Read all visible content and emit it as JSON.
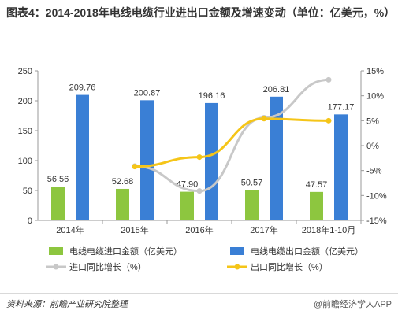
{
  "title": "图表4：2014-2018年电线电缆行业进出口金额及增速变动（单位：亿美元，%）",
  "source": "资料来源：前瞻产业研究院整理",
  "watermark": "@前瞻经济学人APP",
  "chart_data": {
    "type": "bar",
    "categories": [
      "2014年",
      "2015年",
      "2016年",
      "2017年",
      "2018年1-10月"
    ],
    "series": [
      {
        "name": "电线电缆进口金额（亿美元）",
        "type": "bar",
        "axis": "left",
        "color": "#8dc63f",
        "values": [
          56.56,
          52.68,
          47.9,
          50.57,
          47.57
        ],
        "labels": [
          "56.56",
          "52.68",
          "47.90",
          "50.57",
          "47.57"
        ]
      },
      {
        "name": "电线电缆出口金额（亿美元）",
        "type": "bar",
        "axis": "left",
        "color": "#3a7fd5",
        "values": [
          209.76,
          200.87,
          196.16,
          206.81,
          177.17
        ],
        "labels": [
          "209.76",
          "200.87",
          "196.16",
          "206.81",
          "177.17"
        ]
      },
      {
        "name": "进口同比增长（%）",
        "type": "line",
        "axis": "right",
        "color": "#c8c8c8",
        "values": [
          null,
          -4.1,
          -9.1,
          5.6,
          13.2
        ]
      },
      {
        "name": "出口同比增长（%）",
        "type": "line",
        "axis": "right",
        "color": "#f5c518",
        "values": [
          null,
          -4.2,
          -2.3,
          5.4,
          5.0
        ]
      }
    ],
    "y_left": {
      "min": 0,
      "max": 250,
      "ticks": [
        "0",
        "50",
        "100",
        "150",
        "200",
        "250"
      ]
    },
    "y_right": {
      "min": -15,
      "max": 15,
      "ticks": [
        "-15%",
        "-10%",
        "-5%",
        "0%",
        "5%",
        "10%",
        "15%"
      ]
    },
    "grid": false,
    "legend_position": "bottom"
  }
}
